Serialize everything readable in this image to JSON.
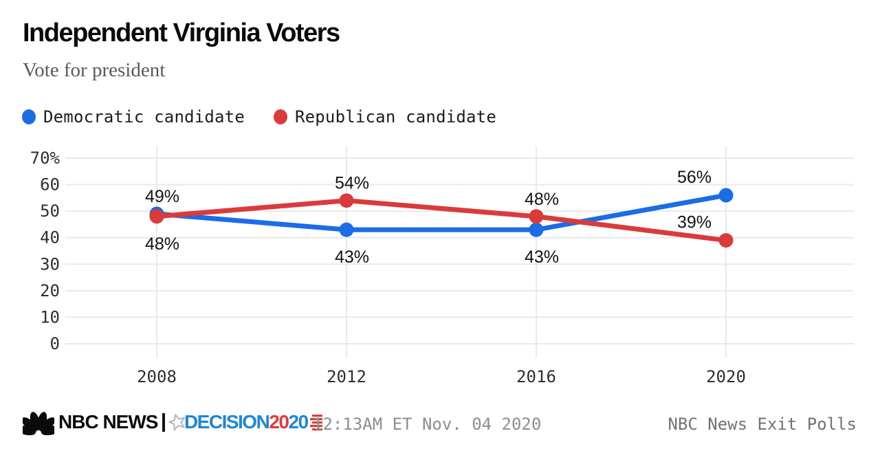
{
  "header": {
    "title": "Independent Virginia Voters",
    "subtitle": "Vote for president"
  },
  "legend": [
    {
      "label": "Democratic candidate",
      "color": "#1b6ce6"
    },
    {
      "label": "Republican candidate",
      "color": "#d93b3b"
    }
  ],
  "chart_data": {
    "type": "line",
    "categories": [
      "2008",
      "2012",
      "2016",
      "2020"
    ],
    "series": [
      {
        "name": "Democratic candidate",
        "color": "#1b6ce6",
        "values": [
          49,
          43,
          43,
          56
        ]
      },
      {
        "name": "Republican candidate",
        "color": "#d93b3b",
        "values": [
          48,
          54,
          48,
          39
        ]
      }
    ],
    "point_labels": [
      [
        "49%",
        "43%",
        "43%",
        "56%"
      ],
      [
        "48%",
        "54%",
        "48%",
        "39%"
      ]
    ],
    "ytick_values": [
      70,
      60,
      50,
      40,
      30,
      20,
      10,
      0
    ],
    "ytick_labels": [
      "70%",
      "60",
      "50",
      "40",
      "30",
      "20",
      "10",
      "0"
    ],
    "ylim": [
      0,
      70
    ],
    "grid": true,
    "legend_position": "top",
    "title": "Independent Virginia Voters",
    "subtitle": "Vote for president"
  },
  "footer": {
    "nbc_news": "NBC NEWS",
    "decision": "DECISION",
    "year_red": "20",
    "year_blue": "20",
    "timestamp": "12:13AM ET Nov. 04 2020",
    "credit": "NBC News Exit Polls"
  },
  "colors": {
    "dem_blue": "#1b6ce6",
    "rep_red": "#d93b3b",
    "decision_blue": "#1d86d8",
    "decision_red": "#e03c3a",
    "gridline": "#e9e9e9"
  }
}
